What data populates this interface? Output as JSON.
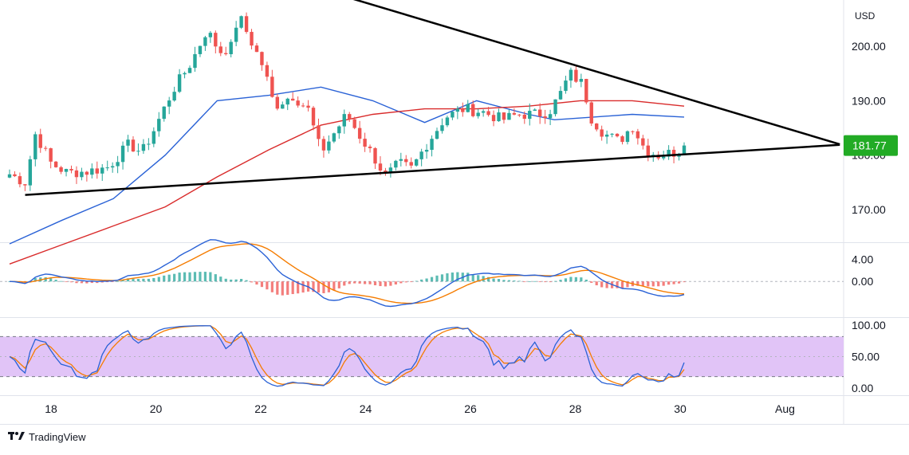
{
  "chart_data": {
    "type": "candlestick",
    "currency": "USD",
    "last_price_label": "181.77",
    "x_ticks": [
      "18",
      "20",
      "22",
      "24",
      "26",
      "28",
      "30",
      "Aug"
    ],
    "price_axis": {
      "ticks": [
        "200.00",
        "190.00",
        "180.00",
        "170.00"
      ],
      "range": [
        164.0,
        208.5
      ]
    },
    "macd_axis": {
      "ticks": [
        "4.00",
        "0.00"
      ],
      "range": [
        -6.5,
        7.0
      ]
    },
    "stoch_axis": {
      "ticks": [
        "100.00",
        "50.00",
        "0.00"
      ],
      "range": [
        -8,
        108
      ]
    },
    "stoch_band": [
      20,
      80
    ],
    "close_path": [
      [
        0.0,
        176.5
      ],
      [
        0.6,
        175.0
      ],
      [
        1.0,
        184.0
      ],
      [
        1.6,
        178.5
      ],
      [
        2.2,
        176.8
      ],
      [
        3.0,
        177.0
      ],
      [
        3.8,
        177.8
      ],
      [
        4.6,
        182.0
      ],
      [
        5.1,
        180.5
      ],
      [
        5.5,
        184.0
      ],
      [
        6.3,
        192.0
      ],
      [
        7.0,
        197.0
      ],
      [
        7.6,
        203.0
      ],
      [
        8.1,
        199.0
      ],
      [
        8.6,
        200.0
      ],
      [
        8.8,
        206.0
      ],
      [
        9.3,
        201.0
      ],
      [
        9.8,
        196.0
      ],
      [
        10.2,
        189.0
      ],
      [
        10.9,
        191.0
      ],
      [
        11.5,
        188.5
      ],
      [
        12.0,
        180.5
      ],
      [
        12.5,
        184.0
      ],
      [
        13.0,
        187.5
      ],
      [
        13.5,
        183.5
      ],
      [
        14.0,
        180.0
      ],
      [
        14.5,
        176.0
      ],
      [
        15.0,
        178.5
      ],
      [
        15.5,
        177.5
      ],
      [
        16.0,
        181.5
      ],
      [
        16.8,
        187.0
      ],
      [
        17.5,
        188.5
      ],
      [
        18.2,
        188.0
      ],
      [
        19.0,
        186.5
      ],
      [
        19.6,
        187.5
      ],
      [
        20.3,
        187.5
      ],
      [
        20.8,
        188.0
      ],
      [
        21.2,
        191.0
      ],
      [
        21.6,
        195.0
      ],
      [
        22.1,
        193.0
      ],
      [
        22.4,
        187.0
      ],
      [
        22.9,
        184.0
      ],
      [
        23.5,
        182.5
      ],
      [
        24.0,
        185.5
      ],
      [
        24.5,
        181.0
      ],
      [
        25.0,
        180.0
      ],
      [
        25.6,
        180.5
      ],
      [
        26.0,
        181.5
      ]
    ],
    "series": [
      {
        "name": "",
        "color": "#2a62d6",
        "points": [
          [
            0,
            163.7
          ],
          [
            2,
            168.0
          ],
          [
            4,
            172.0
          ],
          [
            6,
            180.0
          ],
          [
            8,
            190.0
          ],
          [
            10,
            191.0
          ],
          [
            12,
            192.5
          ],
          [
            14,
            190.0
          ],
          [
            16,
            186.0
          ],
          [
            18,
            190.0
          ],
          [
            20,
            187.5
          ],
          [
            21,
            186.5
          ],
          [
            22.5,
            187.0
          ],
          [
            24,
            187.5
          ],
          [
            26,
            187.0
          ]
        ]
      },
      {
        "name": "",
        "color": "#d92b2b",
        "points": [
          [
            0,
            160.0
          ],
          [
            2,
            163.5
          ],
          [
            4,
            167.0
          ],
          [
            6,
            170.5
          ],
          [
            8,
            176.0
          ],
          [
            10,
            181.0
          ],
          [
            12,
            185.5
          ],
          [
            14,
            187.5
          ],
          [
            16,
            188.5
          ],
          [
            18,
            188.5
          ],
          [
            20,
            189.0
          ],
          [
            22,
            190.0
          ],
          [
            24,
            190.0
          ],
          [
            25,
            189.5
          ],
          [
            26,
            189.0
          ]
        ]
      }
    ],
    "trendlines": [
      {
        "name": "upper-trendline",
        "from": [
          7.4,
          217.0
        ],
        "to": [
          32.0,
          182.0
        ]
      },
      {
        "name": "lower-trendline",
        "from": [
          0.6,
          172.7
        ],
        "to": [
          32.0,
          181.9
        ]
      }
    ],
    "colors": {
      "up": "#26a69a",
      "down": "#ef5350",
      "macd_line": "#2a62d6",
      "signal_line": "#f57c00",
      "hist_up": "#26a69a",
      "hist_down": "#ef5350",
      "stoch_k": "#2a62d6",
      "stoch_d": "#f57c00",
      "stoch_fill": "#e1c4f7",
      "price_label_bg": "#22ab25"
    }
  },
  "branding": {
    "text": "TradingView",
    "logo": "TV"
  }
}
